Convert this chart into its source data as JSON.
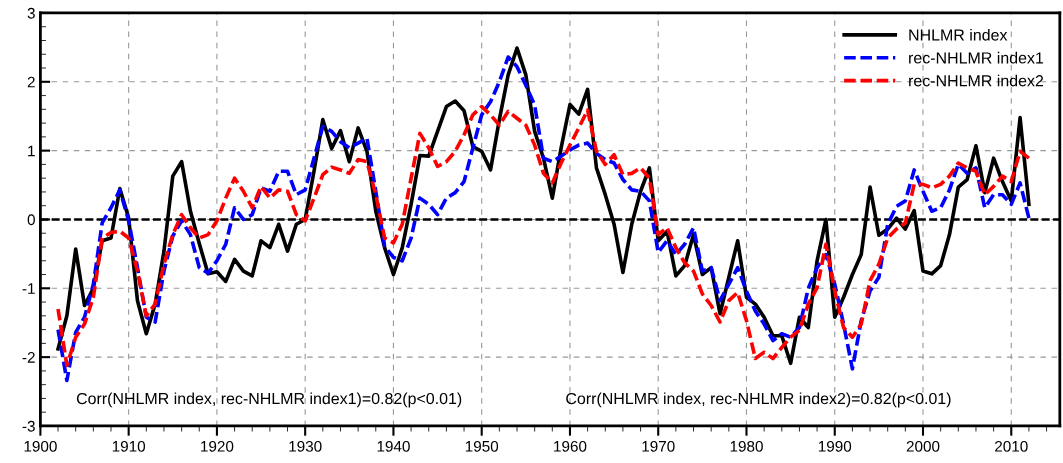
{
  "chart_data": {
    "type": "line",
    "x": [
      1902,
      1903,
      1904,
      1905,
      1906,
      1907,
      1908,
      1909,
      1910,
      1911,
      1912,
      1913,
      1914,
      1915,
      1916,
      1917,
      1918,
      1919,
      1920,
      1921,
      1922,
      1923,
      1924,
      1925,
      1926,
      1927,
      1928,
      1929,
      1930,
      1931,
      1932,
      1933,
      1934,
      1935,
      1936,
      1937,
      1938,
      1939,
      1940,
      1941,
      1942,
      1943,
      1944,
      1945,
      1946,
      1947,
      1948,
      1949,
      1950,
      1951,
      1952,
      1953,
      1954,
      1955,
      1956,
      1957,
      1958,
      1959,
      1960,
      1961,
      1962,
      1963,
      1964,
      1965,
      1966,
      1967,
      1968,
      1969,
      1970,
      1971,
      1972,
      1973,
      1974,
      1975,
      1976,
      1977,
      1978,
      1979,
      1980,
      1981,
      1982,
      1983,
      1984,
      1985,
      1986,
      1987,
      1988,
      1989,
      1990,
      1991,
      1992,
      1993,
      1994,
      1995,
      1996,
      1997,
      1998,
      1999,
      2000,
      2001,
      2002,
      2003,
      2004,
      2005,
      2006,
      2007,
      2008,
      2009,
      2010,
      2011,
      2012
    ],
    "series": [
      {
        "name": "NHLMR index",
        "color": "#000000",
        "line_style": "solid",
        "values": [
          -1.88,
          -1.4,
          -0.43,
          -1.25,
          -1.0,
          -0.31,
          -0.27,
          0.45,
          0.02,
          -1.18,
          -1.66,
          -1.23,
          -0.46,
          0.63,
          0.84,
          0.12,
          -0.35,
          -0.79,
          -0.76,
          -0.9,
          -0.58,
          -0.75,
          -0.82,
          -0.31,
          -0.41,
          -0.07,
          -0.46,
          -0.07,
          0.0,
          0.7,
          1.45,
          1.03,
          1.29,
          0.84,
          1.33,
          0.99,
          0.12,
          -0.41,
          -0.8,
          -0.41,
          0.22,
          0.93,
          0.92,
          1.28,
          1.64,
          1.72,
          1.58,
          1.06,
          0.99,
          0.72,
          1.45,
          2.1,
          2.49,
          2.1,
          1.28,
          0.89,
          0.31,
          1.04,
          1.67,
          1.53,
          1.89,
          0.75,
          0.36,
          -0.07,
          -0.77,
          -0.07,
          0.41,
          0.75,
          -0.31,
          -0.17,
          -0.82,
          -0.67,
          -0.22,
          -0.8,
          -0.7,
          -1.37,
          -0.84,
          -0.31,
          -1.13,
          -1.23,
          -1.42,
          -1.69,
          -1.69,
          -2.09,
          -1.42,
          -1.57,
          -0.6,
          0.0,
          -1.42,
          -1.13,
          -0.8,
          -0.51,
          0.47,
          -0.23,
          -0.14,
          0.02,
          -0.14,
          0.13,
          -0.75,
          -0.79,
          -0.67,
          -0.22,
          0.47,
          0.58,
          1.07,
          0.39,
          0.89,
          0.55,
          0.27,
          1.48,
          0.22
        ]
      },
      {
        "name": "rec-NHLMR index1",
        "color": "#0000ff",
        "line_style": "dashed",
        "values": [
          -1.6,
          -2.34,
          -1.64,
          -1.42,
          -0.94,
          -0.05,
          0.17,
          0.43,
          -0.02,
          -0.7,
          -1.42,
          -1.49,
          -0.75,
          -0.24,
          -0.02,
          -0.22,
          -0.7,
          -0.78,
          -0.6,
          -0.36,
          0.17,
          0.0,
          0.07,
          0.46,
          0.41,
          0.7,
          0.7,
          0.36,
          0.43,
          0.89,
          1.35,
          1.28,
          1.13,
          1.04,
          1.11,
          1.18,
          0.41,
          -0.39,
          -0.55,
          -0.6,
          -0.27,
          0.31,
          0.22,
          0.07,
          0.31,
          0.39,
          0.55,
          1.04,
          1.52,
          1.71,
          2.0,
          2.36,
          2.22,
          1.95,
          1.66,
          0.89,
          0.84,
          0.92,
          1.01,
          1.08,
          1.11,
          0.96,
          0.87,
          0.82,
          0.58,
          0.43,
          0.41,
          0.27,
          -0.48,
          -0.31,
          -0.51,
          -0.36,
          -0.12,
          -0.75,
          -0.7,
          -1.18,
          -0.94,
          -0.7,
          -1.04,
          -1.33,
          -1.52,
          -1.76,
          -1.66,
          -1.71,
          -1.57,
          -1.0,
          -0.7,
          -0.51,
          -0.94,
          -1.52,
          -2.17,
          -1.47,
          -1.04,
          -0.84,
          -0.07,
          0.19,
          0.27,
          0.72,
          0.41,
          0.12,
          0.17,
          0.43,
          0.8,
          0.67,
          0.75,
          0.17,
          0.36,
          0.36,
          0.22,
          0.53,
          0.02
        ]
      },
      {
        "name": "rec-NHLMR index2",
        "color": "#ff0000",
        "line_style": "dashed",
        "values": [
          -1.3,
          -2.12,
          -1.71,
          -1.52,
          -1.13,
          -0.27,
          -0.19,
          -0.17,
          -0.27,
          -0.75,
          -1.4,
          -1.23,
          -0.65,
          -0.22,
          0.07,
          -0.12,
          -0.27,
          -0.22,
          -0.02,
          0.31,
          0.6,
          0.41,
          0.17,
          0.48,
          0.31,
          0.43,
          0.41,
          0.07,
          -0.02,
          0.31,
          0.65,
          0.76,
          0.72,
          0.67,
          0.87,
          0.84,
          0.36,
          -0.27,
          -0.34,
          -0.07,
          0.6,
          1.25,
          1.04,
          0.77,
          0.84,
          0.99,
          1.23,
          1.52,
          1.64,
          1.52,
          1.37,
          1.57,
          1.47,
          1.37,
          1.08,
          0.67,
          0.53,
          0.82,
          1.08,
          1.33,
          1.59,
          0.99,
          0.8,
          0.94,
          0.65,
          0.67,
          0.75,
          0.6,
          -0.22,
          -0.12,
          -0.41,
          -0.63,
          -0.75,
          -1.08,
          -1.25,
          -1.49,
          -1.18,
          -1.06,
          -1.47,
          -2.02,
          -1.93,
          -2.02,
          -1.86,
          -1.71,
          -1.61,
          -1.23,
          -0.99,
          -0.36,
          -1.04,
          -1.57,
          -1.71,
          -1.52,
          -0.89,
          -0.65,
          -0.27,
          -0.14,
          -0.05,
          0.51,
          0.51,
          0.46,
          0.51,
          0.63,
          0.82,
          0.75,
          0.7,
          0.36,
          0.48,
          0.63,
          0.55,
          0.99,
          0.89
        ]
      }
    ],
    "xlim": [
      1900,
      2015.5
    ],
    "ylim": [
      -3,
      3
    ],
    "xticks": [
      1900,
      1910,
      1920,
      1930,
      1940,
      1950,
      1960,
      1970,
      1980,
      1990,
      2000,
      2010
    ],
    "yticks": [
      -3,
      -2,
      -1,
      0,
      1,
      2,
      3
    ],
    "grid": true,
    "legend": "top right",
    "ref_lines": [
      {
        "axis": "y",
        "value": 0,
        "color": "#000000",
        "line_style": "dashed"
      }
    ],
    "annotations": [
      "Corr(NHLMR index, rec-NHLMR index1)=0.82(p<0.01)",
      "Corr(NHLMR index, rec-NHLMR index2)=0.82(p<0.01)"
    ]
  }
}
